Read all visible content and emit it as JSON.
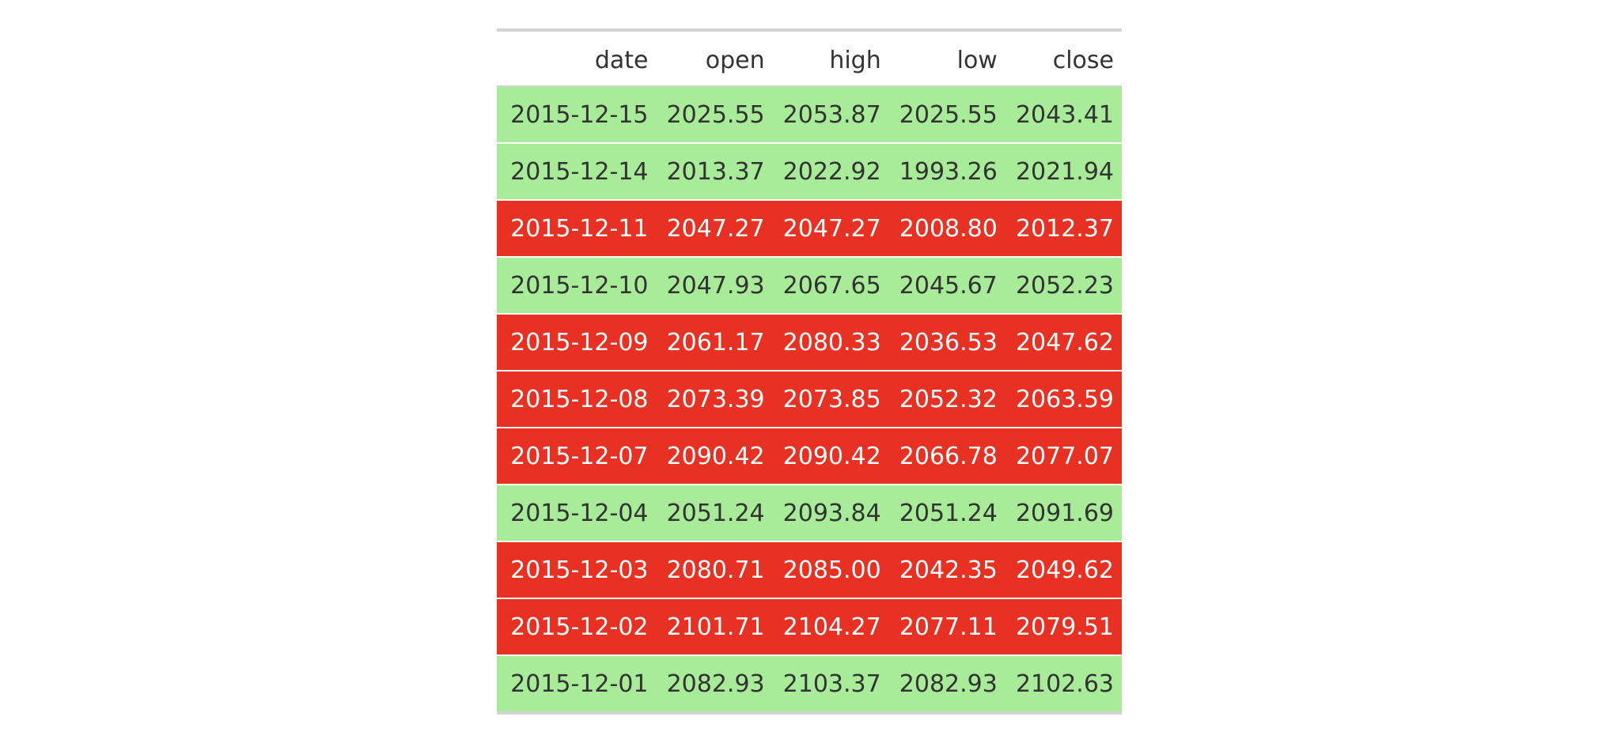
{
  "colors": {
    "up_row": "#a8eb99",
    "down_row": "#e83123",
    "header_text": "#333333",
    "rule": "#d3d3d3"
  },
  "table": {
    "columns": [
      "date",
      "open",
      "high",
      "low",
      "close"
    ],
    "rows": [
      {
        "date": "2015-12-15",
        "open": "2025.55",
        "high": "2053.87",
        "low": "2025.55",
        "close": "2043.41",
        "direction": "up"
      },
      {
        "date": "2015-12-14",
        "open": "2013.37",
        "high": "2022.92",
        "low": "1993.26",
        "close": "2021.94",
        "direction": "up"
      },
      {
        "date": "2015-12-11",
        "open": "2047.27",
        "high": "2047.27",
        "low": "2008.80",
        "close": "2012.37",
        "direction": "down"
      },
      {
        "date": "2015-12-10",
        "open": "2047.93",
        "high": "2067.65",
        "low": "2045.67",
        "close": "2052.23",
        "direction": "up"
      },
      {
        "date": "2015-12-09",
        "open": "2061.17",
        "high": "2080.33",
        "low": "2036.53",
        "close": "2047.62",
        "direction": "down"
      },
      {
        "date": "2015-12-08",
        "open": "2073.39",
        "high": "2073.85",
        "low": "2052.32",
        "close": "2063.59",
        "direction": "down"
      },
      {
        "date": "2015-12-07",
        "open": "2090.42",
        "high": "2090.42",
        "low": "2066.78",
        "close": "2077.07",
        "direction": "down"
      },
      {
        "date": "2015-12-04",
        "open": "2051.24",
        "high": "2093.84",
        "low": "2051.24",
        "close": "2091.69",
        "direction": "up"
      },
      {
        "date": "2015-12-03",
        "open": "2080.71",
        "high": "2085.00",
        "low": "2042.35",
        "close": "2049.62",
        "direction": "down"
      },
      {
        "date": "2015-12-02",
        "open": "2101.71",
        "high": "2104.27",
        "low": "2077.11",
        "close": "2079.51",
        "direction": "down"
      },
      {
        "date": "2015-12-01",
        "open": "2082.93",
        "high": "2103.37",
        "low": "2082.93",
        "close": "2102.63",
        "direction": "up"
      }
    ]
  }
}
